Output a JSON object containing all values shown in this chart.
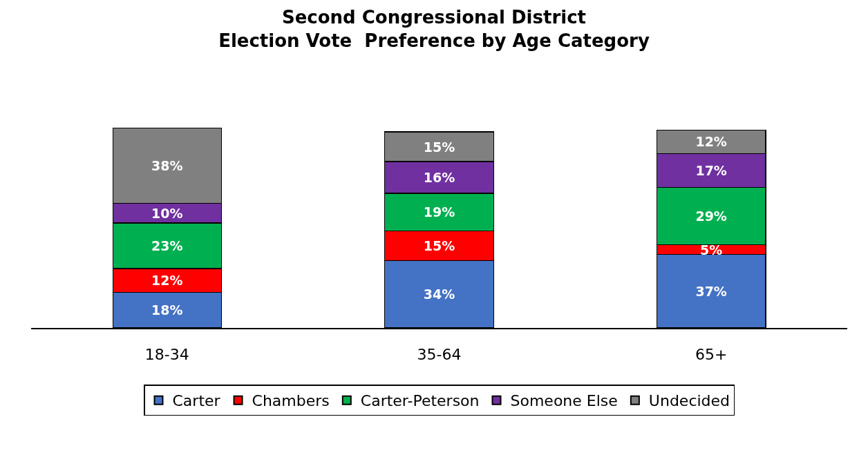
{
  "chart_data": {
    "type": "bar",
    "title": "Second Congressional District\nElection Vote  Preference by Age Category",
    "categories": [
      "18-34",
      "35-64",
      "65+"
    ],
    "stacked": true,
    "legend": "bottom",
    "tick_labels": "x",
    "series": [
      {
        "name": "Carter",
        "color": "#4472c4",
        "values": [
          18,
          34,
          37
        ],
        "value_labels": [
          "18%",
          "34%",
          "37%"
        ]
      },
      {
        "name": "Chambers",
        "color": "#ff0000",
        "values": [
          12,
          15,
          5
        ],
        "value_labels": [
          "12%",
          "15%",
          "5%"
        ]
      },
      {
        "name": "Carter-Peterson",
        "color": "#00b050",
        "values": [
          23,
          19,
          29
        ],
        "value_labels": [
          "23%",
          "19%",
          "29%"
        ]
      },
      {
        "name": "Someone Else",
        "color": "#7030a0",
        "values": [
          10,
          16,
          17
        ],
        "value_labels": [
          "10%",
          "16%",
          "17%"
        ]
      },
      {
        "name": "Undecided",
        "color": "#808080",
        "values": [
          38,
          15,
          12
        ],
        "value_labels": [
          "38%",
          "15%",
          "12%"
        ]
      }
    ]
  }
}
